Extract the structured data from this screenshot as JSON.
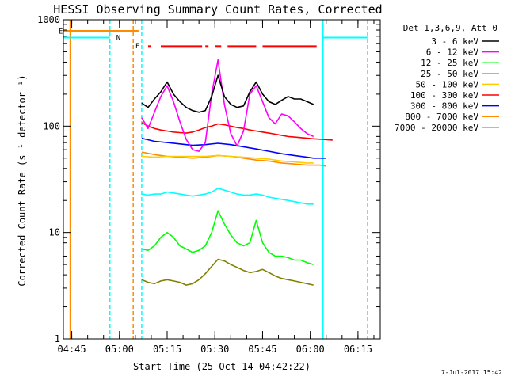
{
  "chart_data": {
    "type": "line",
    "title": "HESSI Observing Summary Count Rates, Corrected",
    "xlabel": "Start Time (25-Oct-14 04:42:22)",
    "ylabel": "Corrected Count Rate (s⁻¹ detector⁻¹)",
    "x_scale": "time",
    "y_scale": "log",
    "xlim": [
      "04:42:22",
      "06:22:00"
    ],
    "ylim": [
      1,
      1000
    ],
    "x_ticks": [
      "04:45",
      "05:00",
      "05:15",
      "05:30",
      "05:45",
      "06:00",
      "06:15"
    ],
    "y_ticks": [
      {
        "value": 1,
        "label": "1"
      },
      {
        "value": 10,
        "label": "10"
      },
      {
        "value": 100,
        "label": "100"
      },
      {
        "value": 1000,
        "label": "1000"
      }
    ],
    "legend_title": "Det 1,3,6,9, Att 0",
    "legend_placement": "right, outside plot",
    "series": [
      {
        "name": "3 - 6 keV",
        "color": "#000000",
        "points": [
          [
            "05:07",
            165
          ],
          [
            "05:09",
            150
          ],
          [
            "05:11",
            180
          ],
          [
            "05:13",
            210
          ],
          [
            "05:15",
            260
          ],
          [
            "05:17",
            200
          ],
          [
            "05:19",
            170
          ],
          [
            "05:21",
            150
          ],
          [
            "05:23",
            140
          ],
          [
            "05:25",
            135
          ],
          [
            "05:27",
            140
          ],
          [
            "05:29",
            190
          ],
          [
            "05:31",
            300
          ],
          [
            "05:33",
            190
          ],
          [
            "05:35",
            160
          ],
          [
            "05:37",
            150
          ],
          [
            "05:39",
            155
          ],
          [
            "05:41",
            210
          ],
          [
            "05:43",
            260
          ],
          [
            "05:45",
            200
          ],
          [
            "05:47",
            170
          ],
          [
            "05:49",
            160
          ],
          [
            "05:51",
            175
          ],
          [
            "05:53",
            190
          ],
          [
            "05:55",
            180
          ],
          [
            "05:57",
            180
          ],
          [
            "05:59",
            170
          ],
          [
            "06:01",
            160
          ]
        ]
      },
      {
        "name": "6 - 12 keV",
        "color": "#ff00ff",
        "points": [
          [
            "05:07",
            120
          ],
          [
            "05:09",
            95
          ],
          [
            "05:11",
            135
          ],
          [
            "05:13",
            190
          ],
          [
            "05:15",
            240
          ],
          [
            "05:17",
            170
          ],
          [
            "05:19",
            110
          ],
          [
            "05:21",
            75
          ],
          [
            "05:23",
            60
          ],
          [
            "05:25",
            58
          ],
          [
            "05:27",
            70
          ],
          [
            "05:29",
            200
          ],
          [
            "05:31",
            420
          ],
          [
            "05:33",
            160
          ],
          [
            "05:35",
            85
          ],
          [
            "05:37",
            65
          ],
          [
            "05:39",
            90
          ],
          [
            "05:41",
            200
          ],
          [
            "05:43",
            240
          ],
          [
            "05:45",
            170
          ],
          [
            "05:47",
            120
          ],
          [
            "05:49",
            105
          ],
          [
            "05:51",
            130
          ],
          [
            "05:53",
            125
          ],
          [
            "05:55",
            110
          ],
          [
            "05:57",
            95
          ],
          [
            "05:59",
            85
          ],
          [
            "06:01",
            80
          ]
        ]
      },
      {
        "name": "12 - 25 keV",
        "color": "#00ff00",
        "points": [
          [
            "05:07",
            7
          ],
          [
            "05:09",
            6.8
          ],
          [
            "05:11",
            7.5
          ],
          [
            "05:13",
            9
          ],
          [
            "05:15",
            10
          ],
          [
            "05:17",
            9
          ],
          [
            "05:19",
            7.5
          ],
          [
            "05:21",
            7
          ],
          [
            "05:23",
            6.5
          ],
          [
            "05:25",
            6.8
          ],
          [
            "05:27",
            7.5
          ],
          [
            "05:29",
            10
          ],
          [
            "05:31",
            16
          ],
          [
            "05:33",
            12
          ],
          [
            "05:35",
            9.5
          ],
          [
            "05:37",
            8
          ],
          [
            "05:39",
            7.5
          ],
          [
            "05:41",
            8
          ],
          [
            "05:43",
            13
          ],
          [
            "05:45",
            8
          ],
          [
            "05:47",
            6.5
          ],
          [
            "05:49",
            6
          ],
          [
            "05:51",
            6
          ],
          [
            "05:53",
            5.8
          ],
          [
            "05:55",
            5.5
          ],
          [
            "05:57",
            5.5
          ],
          [
            "05:59",
            5.2
          ],
          [
            "06:01",
            5
          ]
        ]
      },
      {
        "name": "25 - 50 keV",
        "color": "#00ffff",
        "points": [
          [
            "05:07",
            23
          ],
          [
            "05:09",
            22.5
          ],
          [
            "05:11",
            23
          ],
          [
            "05:13",
            23
          ],
          [
            "05:15",
            24
          ],
          [
            "05:17",
            23.5
          ],
          [
            "05:19",
            23
          ],
          [
            "05:21",
            22.5
          ],
          [
            "05:23",
            22
          ],
          [
            "05:25",
            22.5
          ],
          [
            "05:27",
            23
          ],
          [
            "05:29",
            24
          ],
          [
            "05:31",
            26
          ],
          [
            "05:33",
            25
          ],
          [
            "05:35",
            24
          ],
          [
            "05:37",
            23
          ],
          [
            "05:39",
            22.5
          ],
          [
            "05:41",
            22.5
          ],
          [
            "05:43",
            23
          ],
          [
            "05:45",
            22.5
          ],
          [
            "05:47",
            21.5
          ],
          [
            "05:49",
            21
          ],
          [
            "05:51",
            20.5
          ],
          [
            "05:53",
            20
          ],
          [
            "05:55",
            19.5
          ],
          [
            "05:57",
            19
          ],
          [
            "05:59",
            18.5
          ],
          [
            "06:01",
            18.5
          ]
        ]
      },
      {
        "name": "50 - 100 keV",
        "color": "#ffcc00",
        "points": [
          [
            "05:07",
            52
          ],
          [
            "05:11",
            51
          ],
          [
            "05:15",
            52
          ],
          [
            "05:19",
            52
          ],
          [
            "05:23",
            52
          ],
          [
            "05:27",
            52
          ],
          [
            "05:31",
            53
          ],
          [
            "05:35",
            52
          ],
          [
            "05:39",
            51
          ],
          [
            "05:43",
            50
          ],
          [
            "05:47",
            49
          ],
          [
            "05:51",
            47
          ],
          [
            "05:55",
            46
          ],
          [
            "05:59",
            45
          ],
          [
            "06:01",
            45
          ]
        ]
      },
      {
        "name": "100 - 300 keV",
        "color": "#ff0000",
        "points": [
          [
            "05:07",
            108
          ],
          [
            "05:09",
            100
          ],
          [
            "05:11",
            95
          ],
          [
            "05:13",
            92
          ],
          [
            "05:15",
            90
          ],
          [
            "05:17",
            88
          ],
          [
            "05:19",
            87
          ],
          [
            "05:21",
            86
          ],
          [
            "05:23",
            88
          ],
          [
            "05:25",
            92
          ],
          [
            "05:27",
            97
          ],
          [
            "05:29",
            100
          ],
          [
            "05:31",
            105
          ],
          [
            "05:33",
            103
          ],
          [
            "05:35",
            100
          ],
          [
            "05:37",
            97
          ],
          [
            "05:39",
            95
          ],
          [
            "05:41",
            92
          ],
          [
            "05:43",
            90
          ],
          [
            "05:45",
            88
          ],
          [
            "05:47",
            86
          ],
          [
            "05:49",
            84
          ],
          [
            "05:51",
            82
          ],
          [
            "05:53",
            80
          ],
          [
            "05:55",
            79
          ],
          [
            "05:57",
            78
          ],
          [
            "05:59",
            77
          ],
          [
            "06:01",
            76
          ],
          [
            "06:04",
            75
          ],
          [
            "06:07",
            74
          ]
        ]
      },
      {
        "name": "300 - 800 keV",
        "color": "#0000ff",
        "points": [
          [
            "05:07",
            77
          ],
          [
            "05:11",
            72
          ],
          [
            "05:15",
            70
          ],
          [
            "05:19",
            68
          ],
          [
            "05:23",
            66
          ],
          [
            "05:27",
            67
          ],
          [
            "05:31",
            69
          ],
          [
            "05:35",
            67
          ],
          [
            "05:39",
            64
          ],
          [
            "05:43",
            61
          ],
          [
            "05:47",
            58
          ],
          [
            "05:51",
            55
          ],
          [
            "05:55",
            53
          ],
          [
            "05:59",
            51
          ],
          [
            "06:01",
            50
          ],
          [
            "06:03",
            50
          ],
          [
            "06:05",
            50
          ]
        ]
      },
      {
        "name": "800 - 7000 keV",
        "color": "#ff8c00",
        "points": [
          [
            "05:07",
            57
          ],
          [
            "05:11",
            54
          ],
          [
            "05:15",
            52
          ],
          [
            "05:19",
            51
          ],
          [
            "05:23",
            50
          ],
          [
            "05:27",
            51
          ],
          [
            "05:31",
            53
          ],
          [
            "05:35",
            52
          ],
          [
            "05:39",
            50
          ],
          [
            "05:43",
            48
          ],
          [
            "05:47",
            47
          ],
          [
            "05:51",
            45
          ],
          [
            "05:55",
            44
          ],
          [
            "05:59",
            43
          ],
          [
            "06:01",
            43
          ],
          [
            "06:03",
            43
          ],
          [
            "06:05",
            42
          ]
        ]
      },
      {
        "name": "7000 - 20000 keV",
        "color": "#808000",
        "points": [
          [
            "05:07",
            3.6
          ],
          [
            "05:09",
            3.4
          ],
          [
            "05:11",
            3.3
          ],
          [
            "05:13",
            3.5
          ],
          [
            "05:15",
            3.6
          ],
          [
            "05:17",
            3.5
          ],
          [
            "05:19",
            3.4
          ],
          [
            "05:21",
            3.2
          ],
          [
            "05:23",
            3.3
          ],
          [
            "05:25",
            3.6
          ],
          [
            "05:27",
            4.1
          ],
          [
            "05:29",
            4.8
          ],
          [
            "05:31",
            5.6
          ],
          [
            "05:33",
            5.4
          ],
          [
            "05:35",
            5.0
          ],
          [
            "05:37",
            4.7
          ],
          [
            "05:39",
            4.4
          ],
          [
            "05:41",
            4.2
          ],
          [
            "05:43",
            4.3
          ],
          [
            "05:45",
            4.5
          ],
          [
            "05:47",
            4.2
          ],
          [
            "05:49",
            3.9
          ],
          [
            "05:51",
            3.7
          ],
          [
            "05:53",
            3.6
          ],
          [
            "05:55",
            3.5
          ],
          [
            "05:57",
            3.4
          ],
          [
            "05:59",
            3.3
          ],
          [
            "06:01",
            3.2
          ]
        ]
      }
    ],
    "markers": {
      "orange_step": {
        "label": "E",
        "level": 780,
        "from": "04:42:22",
        "to": "05:06",
        "color": "#ff8c00"
      },
      "cyan_step_left": {
        "label": "N",
        "level": 680,
        "from": "04:42:22",
        "to": "04:57",
        "color": "#00ffff"
      },
      "cyan_step_right": {
        "level": 680,
        "from": "06:04",
        "to": "06:18",
        "color": "#00ffff"
      },
      "flare_flag": {
        "label": "F",
        "level": 560,
        "color": "#ff0000",
        "segments": [
          [
            "05:09",
            "05:10"
          ],
          [
            "05:13",
            "05:26"
          ],
          [
            "05:27",
            "05:28"
          ],
          [
            "05:30",
            "05:32"
          ],
          [
            "05:34",
            "05:43"
          ],
          [
            "05:45",
            "06:02"
          ]
        ]
      },
      "vlines": [
        {
          "t": "04:44:30",
          "color": "#ff8c00",
          "style": "solid"
        },
        {
          "t": "04:57",
          "color": "#00ffff",
          "style": "dashed"
        },
        {
          "t": "05:04:20",
          "color": "#ff8c00",
          "style": "dashed"
        },
        {
          "t": "05:07",
          "color": "#00ffff",
          "style": "dashed"
        },
        {
          "t": "06:04",
          "color": "#00ffff",
          "style": "solid"
        },
        {
          "t": "06:18",
          "color": "#00ffff",
          "style": "dashed"
        }
      ]
    },
    "grid": false
  },
  "footer_timestamp": "7-Jul-2017 15:42"
}
